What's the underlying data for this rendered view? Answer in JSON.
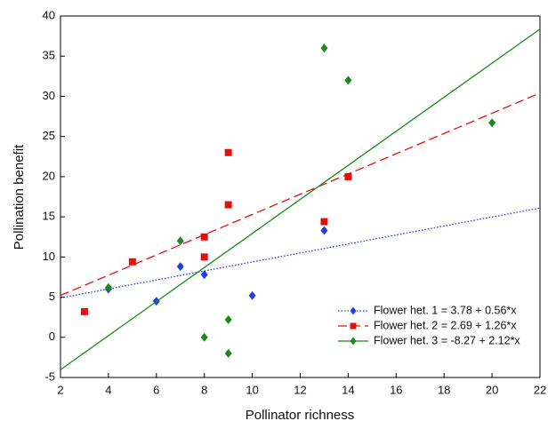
{
  "chart_data": {
    "type": "scatter",
    "x_label": "Pollinator richness",
    "y_label": "Pollination benefit",
    "xlim": [
      2,
      22
    ],
    "xticks": [
      2,
      4,
      6,
      8,
      10,
      12,
      14,
      16,
      18,
      20,
      22
    ],
    "ylim": [
      -5,
      40
    ],
    "yticks": [
      -5,
      0,
      5,
      10,
      15,
      20,
      25,
      30,
      35,
      40
    ],
    "legend": "lower-right",
    "series": [
      {
        "name": "Flower het. 1 = 3.78 + 0.56*x",
        "color": "#1f3fe0",
        "marker": "diamond",
        "dash": "dotted",
        "x": [
          4,
          6,
          7,
          8,
          10,
          13
        ],
        "values": [
          6,
          4.5,
          8.8,
          7.8,
          5.2,
          13.3
        ],
        "fit_line": {
          "x": [
            2,
            22
          ],
          "y": [
            4.9,
            16.1
          ]
        }
      },
      {
        "name": "Flower het. 2 = 2.69 + 1.26*x",
        "color": "#e01010",
        "marker": "square",
        "dash": "dashed",
        "x": [
          3,
          5,
          8,
          8,
          9,
          9,
          13,
          14
        ],
        "values": [
          3.2,
          9.4,
          12.5,
          10,
          23,
          16.5,
          14.4,
          20
        ],
        "fit_line": {
          "x": [
            2,
            22
          ],
          "y": [
            5.21,
            30.41
          ]
        }
      },
      {
        "name": "Flower het. 3 = -8.27 + 2.12*x",
        "color": "#1a8a1a",
        "marker": "diamond",
        "dash": "solid",
        "x": [
          4,
          7,
          8,
          9,
          9,
          13,
          14,
          20
        ],
        "values": [
          6.2,
          12,
          0,
          2.2,
          -2,
          36,
          32,
          26.7
        ],
        "fit_line": {
          "x": [
            2,
            22
          ],
          "y": [
            -4.03,
            38.37
          ]
        }
      }
    ]
  }
}
